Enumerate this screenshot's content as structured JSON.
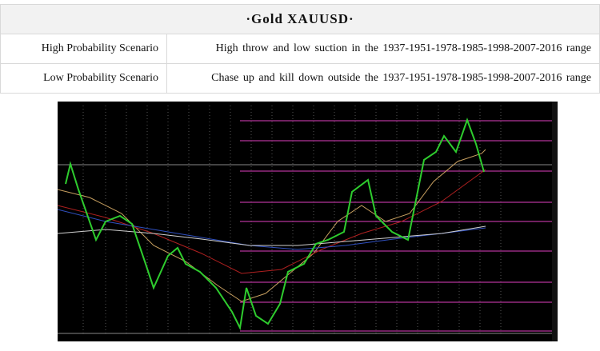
{
  "header": {
    "title": "·Gold  XAUUSD·"
  },
  "table": {
    "rows": [
      [
        "High Probability Scenario",
        "High throw and low suction in the 1937-1951-1978-1985-1998-2007-2016 range"
      ],
      [
        "Low Probability Scenario",
        "Chase up and kill down outside the 1937-1951-1978-1985-1998-2007-2016 range"
      ]
    ]
  }
}
